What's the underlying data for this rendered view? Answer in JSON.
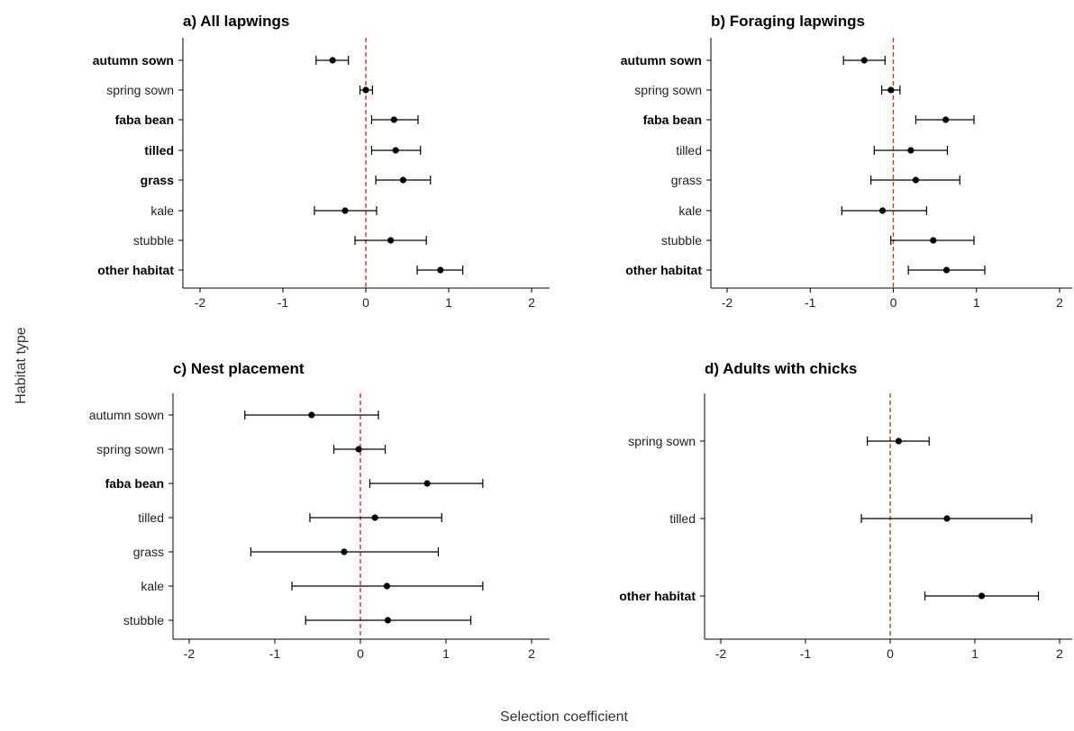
{
  "y_axis_title": "Habitat type",
  "x_axis_title": "Selection coefficient",
  "chart_data": [
    {
      "type": "scatter",
      "title": "a) All lapwings",
      "xlim": [
        -2.2,
        2.2
      ],
      "x_ticks": [
        "-2",
        "-1",
        "0",
        "1",
        "2"
      ],
      "reference_line_x": 0,
      "categories": [
        "autumn sown",
        "spring sown",
        "faba bean",
        "tilled",
        "grass",
        "kale",
        "stubble",
        "other habitat"
      ],
      "bold": [
        true,
        false,
        true,
        true,
        true,
        false,
        false,
        true
      ],
      "estimate": [
        -0.4,
        0.0,
        0.34,
        0.36,
        0.45,
        -0.25,
        0.3,
        0.9
      ],
      "lower": [
        -0.6,
        -0.07,
        0.07,
        0.07,
        0.12,
        -0.62,
        -0.13,
        0.62
      ],
      "upper": [
        -0.21,
        0.08,
        0.63,
        0.66,
        0.78,
        0.13,
        0.73,
        1.17
      ]
    },
    {
      "type": "scatter",
      "title": "b) Foraging lapwings",
      "xlim": [
        -2.2,
        2.2
      ],
      "x_ticks": [
        "-2",
        "-1",
        "0",
        "1",
        "2"
      ],
      "reference_line_x": 0,
      "categories": [
        "autumn sown",
        "spring sown",
        "faba bean",
        "tilled",
        "grass",
        "kale",
        "stubble",
        "other habitat"
      ],
      "bold": [
        true,
        false,
        true,
        false,
        false,
        false,
        false,
        true
      ],
      "estimate": [
        -0.35,
        -0.03,
        0.63,
        0.21,
        0.27,
        -0.13,
        0.48,
        0.64
      ],
      "lower": [
        -0.6,
        -0.14,
        0.27,
        -0.23,
        -0.27,
        -0.62,
        -0.03,
        0.18
      ],
      "upper": [
        -0.1,
        0.08,
        0.97,
        0.65,
        0.8,
        0.4,
        0.97,
        1.1
      ]
    },
    {
      "type": "scatter",
      "title": "c) Nest placement",
      "xlim": [
        -2.2,
        2.2
      ],
      "x_ticks": [
        "-2",
        "-1",
        "0",
        "1",
        "2"
      ],
      "reference_line_x": 0,
      "categories": [
        "autumn sown",
        "spring sown",
        "faba bean",
        "tilled",
        "grass",
        "kale",
        "stubble"
      ],
      "bold": [
        false,
        false,
        true,
        false,
        false,
        false,
        false
      ],
      "estimate": [
        -0.57,
        -0.02,
        0.78,
        0.17,
        -0.19,
        0.31,
        0.32
      ],
      "lower": [
        -1.35,
        -0.31,
        0.11,
        -0.59,
        -1.28,
        -0.8,
        -0.64
      ],
      "upper": [
        0.21,
        0.29,
        1.43,
        0.95,
        0.91,
        1.43,
        1.29
      ]
    },
    {
      "type": "scatter",
      "title": "d) Adults with chicks",
      "xlim": [
        -2.2,
        2.2
      ],
      "x_ticks": [
        "-2",
        "-1",
        "0",
        "1",
        "2"
      ],
      "reference_line_x": 0,
      "categories": [
        "spring sown",
        "tilled",
        "other habitat"
      ],
      "bold": [
        false,
        false,
        true
      ],
      "estimate": [
        0.1,
        0.67,
        1.08
      ],
      "lower": [
        -0.27,
        -0.34,
        0.41
      ],
      "upper": [
        0.46,
        1.67,
        1.75
      ]
    }
  ],
  "colors": {
    "reference_line": "#c0392b",
    "point": "#000000",
    "axis": "#000000",
    "text": "#222222"
  }
}
